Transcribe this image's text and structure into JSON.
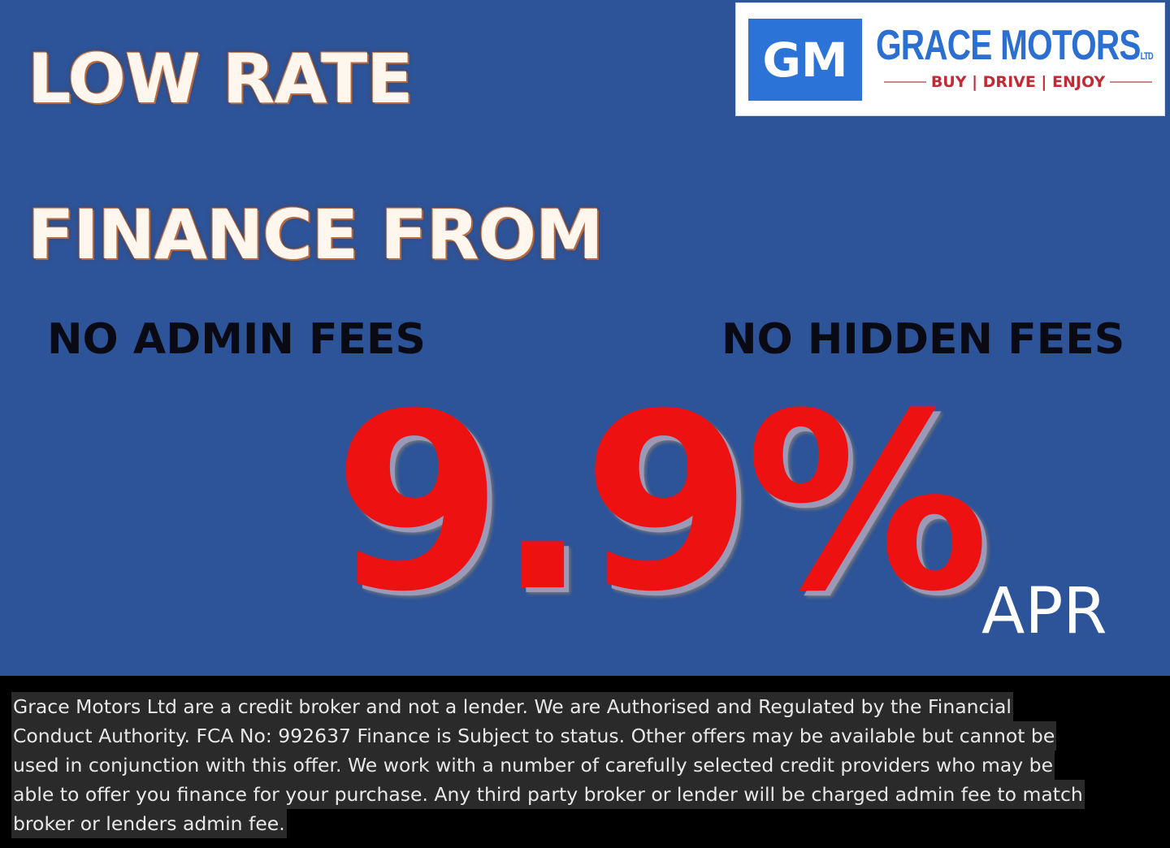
{
  "headline": {
    "line1": "LOW RATE",
    "line2": "FINANCE FROM"
  },
  "features": {
    "left": "NO ADMIN FEES",
    "right": "NO HIDDEN FEES"
  },
  "offer": {
    "rate": "9.9%",
    "unit": "APR"
  },
  "logo": {
    "monogram": "GM",
    "brand": "GRACE MOTORS",
    "suffix": "LTD",
    "tagline": "BUY | DRIVE | ENJOY"
  },
  "colors": {
    "background": "#2d5398",
    "rate": "#ee1111",
    "logo_blue": "#2b73d6",
    "tagline_red": "#c22a36"
  },
  "disclaimer": {
    "lines": [
      "Grace Motors Ltd are a credit broker and not a lender. We are Authorised and Regulated by the Financial",
      "Conduct Authority. FCA No: 992637 Finance is Subject to status. Other offers may be available but cannot be",
      "used in conjunction with this offer. We work with a number of carefully selected credit providers who may be",
      "able to offer you finance for your purchase.  Any third party broker or lender will be charged admin fee to match",
      "broker or lenders admin fee."
    ]
  }
}
